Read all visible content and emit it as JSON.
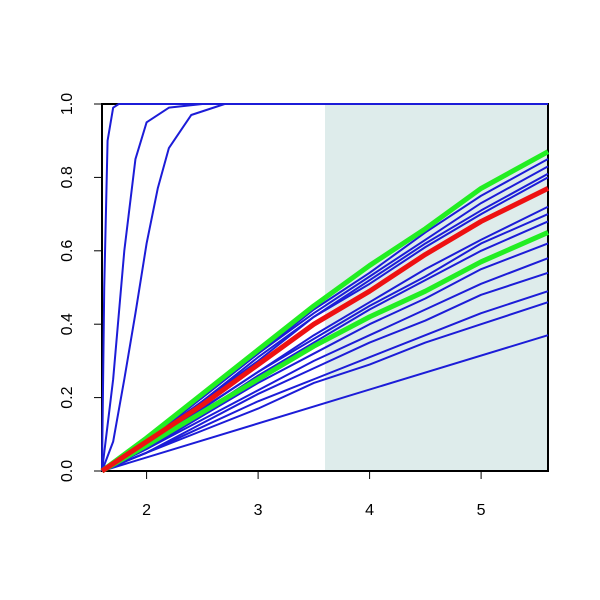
{
  "chart_data": {
    "type": "line",
    "xlim": [
      1.6,
      5.6
    ],
    "ylim": [
      0,
      1
    ],
    "xticks": [
      2,
      3,
      4,
      5
    ],
    "yticks": [
      {
        "value": 0,
        "label": "0.0"
      },
      {
        "value": 0.2,
        "label": "0.2"
      },
      {
        "value": 0.4,
        "label": "0.4"
      },
      {
        "value": 0.6,
        "label": "0.6"
      },
      {
        "value": 0.8,
        "label": "0.8"
      },
      {
        "value": 1,
        "label": "1.0"
      }
    ],
    "shaded_x": [
      3.6,
      5.6
    ],
    "shade_color": "#deeceb",
    "series": [
      {
        "color": "#1c1cd8",
        "x": [
          1.6,
          1.62,
          1.65,
          1.7,
          1.75,
          5.6
        ],
        "values": [
          0,
          0.5,
          0.9,
          0.99,
          1,
          1
        ]
      },
      {
        "color": "#1c1cd8",
        "x": [
          1.6,
          1.7,
          1.8,
          1.9,
          2.0,
          2.2,
          2.5,
          5.6
        ],
        "values": [
          0,
          0.25,
          0.6,
          0.85,
          0.95,
          0.99,
          1,
          1
        ]
      },
      {
        "color": "#1c1cd8",
        "x": [
          1.6,
          1.7,
          1.8,
          1.9,
          2.0,
          2.1,
          2.2,
          2.4,
          2.7,
          5.6
        ],
        "values": [
          0,
          0.08,
          0.25,
          0.43,
          0.62,
          0.77,
          0.88,
          0.97,
          1,
          1
        ]
      },
      {
        "color": "#1c1cd8",
        "x": [
          1.6,
          2,
          2.5,
          3,
          3.5,
          4,
          4.5,
          5,
          5.6
        ],
        "values": [
          0,
          0.09,
          0.2,
          0.32,
          0.44,
          0.54,
          0.65,
          0.75,
          0.85
        ]
      },
      {
        "color": "#1c1cd8",
        "x": [
          1.6,
          2,
          2.5,
          3,
          3.5,
          4,
          4.5,
          5,
          5.6
        ],
        "values": [
          0,
          0.08,
          0.2,
          0.32,
          0.43,
          0.53,
          0.63,
          0.73,
          0.83
        ]
      },
      {
        "color": "#1c1cd8",
        "x": [
          1.6,
          2,
          2.5,
          3,
          3.5,
          4,
          4.5,
          5,
          5.6
        ],
        "values": [
          0,
          0.08,
          0.19,
          0.31,
          0.42,
          0.52,
          0.62,
          0.71,
          0.81
        ]
      },
      {
        "color": "#1c1cd8",
        "x": [
          1.6,
          2,
          2.5,
          3,
          3.5,
          4,
          4.5,
          5,
          5.6
        ],
        "values": [
          0,
          0.08,
          0.19,
          0.3,
          0.42,
          0.51,
          0.61,
          0.7,
          0.8
        ]
      },
      {
        "color": "#1c1cd8",
        "x": [
          1.6,
          2,
          2.5,
          3,
          3.5,
          4,
          4.5,
          5,
          5.6
        ],
        "values": [
          0,
          0.07,
          0.17,
          0.27,
          0.37,
          0.46,
          0.55,
          0.63,
          0.72
        ]
      },
      {
        "color": "#1c1cd8",
        "x": [
          1.6,
          2,
          2.5,
          3,
          3.5,
          4,
          4.5,
          5,
          5.6
        ],
        "values": [
          0,
          0.07,
          0.17,
          0.27,
          0.36,
          0.45,
          0.53,
          0.62,
          0.7
        ]
      },
      {
        "color": "#1c1cd8",
        "x": [
          1.6,
          2,
          2.5,
          3,
          3.5,
          4,
          4.5,
          5,
          5.6
        ],
        "values": [
          0,
          0.07,
          0.16,
          0.26,
          0.35,
          0.44,
          0.52,
          0.6,
          0.68
        ]
      },
      {
        "color": "#1c1cd8",
        "x": [
          1.6,
          2,
          2.5,
          3,
          3.5,
          4,
          4.5,
          5,
          5.6
        ],
        "values": [
          0,
          0.06,
          0.15,
          0.24,
          0.32,
          0.4,
          0.47,
          0.55,
          0.62
        ]
      },
      {
        "color": "#1c1cd8",
        "x": [
          1.6,
          2,
          2.5,
          3,
          3.5,
          4,
          4.5,
          5,
          5.6
        ],
        "values": [
          0,
          0.06,
          0.14,
          0.22,
          0.3,
          0.37,
          0.44,
          0.51,
          0.58
        ]
      },
      {
        "color": "#1c1cd8",
        "x": [
          1.6,
          2,
          2.5,
          3,
          3.5,
          4,
          4.5,
          5,
          5.6
        ],
        "values": [
          0,
          0.05,
          0.13,
          0.21,
          0.28,
          0.35,
          0.41,
          0.48,
          0.54
        ]
      },
      {
        "color": "#1c1cd8",
        "x": [
          1.6,
          2,
          2.5,
          3,
          3.5,
          4,
          4.5,
          5,
          5.6
        ],
        "values": [
          0,
          0.05,
          0.12,
          0.19,
          0.25,
          0.31,
          0.37,
          0.43,
          0.49
        ]
      },
      {
        "color": "#1c1cd8",
        "x": [
          1.6,
          2,
          2.5,
          3,
          3.5,
          4,
          4.5,
          5,
          5.6
        ],
        "values": [
          0,
          0.05,
          0.11,
          0.17,
          0.24,
          0.29,
          0.35,
          0.4,
          0.46
        ]
      },
      {
        "color": "#1c1cd8",
        "x": [
          1.6,
          5.6
        ],
        "values": [
          0,
          0.37
        ]
      },
      {
        "color": "#22ee22",
        "x": [
          1.6,
          2,
          2.5,
          3,
          3.5,
          4,
          4.5,
          5,
          5.6
        ],
        "values": [
          0,
          0.07,
          0.16,
          0.25,
          0.34,
          0.42,
          0.49,
          0.57,
          0.65
        ]
      },
      {
        "color": "#22ee22",
        "x": [
          1.6,
          2,
          2.5,
          3,
          3.5,
          4,
          4.5,
          5,
          5.6
        ],
        "values": [
          0,
          0.09,
          0.21,
          0.33,
          0.45,
          0.56,
          0.66,
          0.77,
          0.87
        ]
      },
      {
        "color": "#ee1111",
        "x": [
          1.6,
          2,
          2.5,
          3,
          3.5,
          4,
          4.5,
          5,
          5.6
        ],
        "values": [
          0,
          0.08,
          0.18,
          0.29,
          0.4,
          0.49,
          0.59,
          0.68,
          0.77
        ]
      }
    ]
  }
}
